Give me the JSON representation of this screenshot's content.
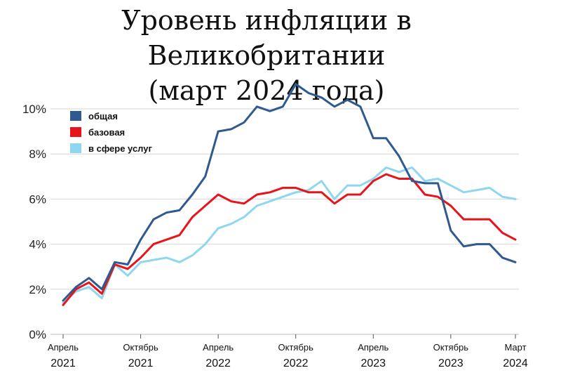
{
  "chart_data": {
    "type": "line",
    "title": "Уровень инфляции в Великобритании",
    "subtitle": "(март 2024 года)",
    "xlabel": "",
    "ylabel": "",
    "ylim": [
      0,
      10
    ],
    "yticks": [
      "0%",
      "2%",
      "4%",
      "6%",
      "8%",
      "10%"
    ],
    "grid": true,
    "legend_position": "top-left",
    "x_ticks": [
      {
        "month": "Апрель",
        "year": "2021",
        "index": 0
      },
      {
        "month": "Октябрь",
        "year": "2021",
        "index": 6
      },
      {
        "month": "Апрель",
        "year": "2022",
        "index": 12
      },
      {
        "month": "Октябрь",
        "year": "2022",
        "index": 18
      },
      {
        "month": "Апрель",
        "year": "2023",
        "index": 24
      },
      {
        "month": "Октябрь",
        "year": "2023",
        "index": 30
      },
      {
        "month": "Март",
        "year": "2024",
        "index": 35
      }
    ],
    "months": [
      "2021-04",
      "2021-05",
      "2021-06",
      "2021-07",
      "2021-08",
      "2021-09",
      "2021-10",
      "2021-11",
      "2021-12",
      "2022-01",
      "2022-02",
      "2022-03",
      "2022-04",
      "2022-05",
      "2022-06",
      "2022-07",
      "2022-08",
      "2022-09",
      "2022-10",
      "2022-11",
      "2022-12",
      "2023-01",
      "2023-02",
      "2023-03",
      "2023-04",
      "2023-05",
      "2023-06",
      "2023-07",
      "2023-08",
      "2023-09",
      "2023-10",
      "2023-11",
      "2023-12",
      "2024-01",
      "2024-02",
      "2024-03"
    ],
    "series": [
      {
        "name": "общая",
        "color": "#2f5a8f",
        "values": [
          1.5,
          2.1,
          2.5,
          2.0,
          3.2,
          3.1,
          4.2,
          5.1,
          5.4,
          5.5,
          6.2,
          7.0,
          9.0,
          9.1,
          9.4,
          10.1,
          9.9,
          10.1,
          11.1,
          10.7,
          10.5,
          10.1,
          10.4,
          10.1,
          8.7,
          8.7,
          7.9,
          6.8,
          6.7,
          6.7,
          4.6,
          3.9,
          4.0,
          4.0,
          3.4,
          3.2
        ]
      },
      {
        "name": "базовая",
        "color": "#e8141b",
        "values": [
          1.3,
          2.0,
          2.3,
          1.8,
          3.1,
          2.9,
          3.4,
          4.0,
          4.2,
          4.4,
          5.2,
          5.7,
          6.2,
          5.9,
          5.8,
          6.2,
          6.3,
          6.5,
          6.5,
          6.3,
          6.3,
          5.8,
          6.2,
          6.2,
          6.8,
          7.1,
          6.9,
          6.9,
          6.2,
          6.1,
          5.7,
          5.1,
          5.1,
          5.1,
          4.5,
          4.2
        ]
      },
      {
        "name": "в сфере услуг",
        "color": "#8fd6ef",
        "values": [
          1.4,
          1.9,
          2.1,
          1.6,
          3.1,
          2.6,
          3.2,
          3.3,
          3.4,
          3.2,
          3.5,
          4.0,
          4.7,
          4.9,
          5.2,
          5.7,
          5.9,
          6.1,
          6.3,
          6.4,
          6.8,
          6.0,
          6.6,
          6.6,
          6.9,
          7.4,
          7.2,
          7.4,
          6.8,
          6.9,
          6.6,
          6.3,
          6.4,
          6.5,
          6.1,
          6.0
        ]
      }
    ]
  }
}
